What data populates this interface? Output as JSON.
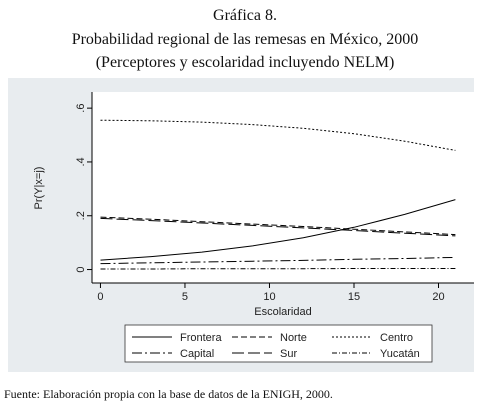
{
  "chart_data": {
    "type": "line",
    "title": "Gráfica 8.",
    "subtitle": "Probabilidad regional de las remesas en México, 2000",
    "subtitle2": "(Perceptores y escolaridad incluyendo NELM)",
    "source": "Fuente: Elaboración propia con la base de datos de la ENIGH, 2000.",
    "x_label": "Escolaridad",
    "y_label": "Pr(Y|x=j)",
    "x": [
      0,
      3,
      6,
      9,
      12,
      15,
      18,
      21
    ],
    "xlim": [
      -0.5,
      22.1
    ],
    "xticks": [
      0,
      5,
      10,
      15,
      20
    ],
    "ylim": [
      -0.05,
      0.66
    ],
    "yticks": [
      0,
      {
        "value": 0.2,
        "label": ".2"
      },
      {
        "value": 0.4,
        "label": ".4"
      },
      {
        "value": 0.6,
        "label": ".6"
      }
    ],
    "series": [
      {
        "name": "Frontera",
        "color": "#000000",
        "dash": "",
        "values": [
          0.035,
          0.048,
          0.065,
          0.088,
          0.118,
          0.157,
          0.205,
          0.26
        ]
      },
      {
        "name": "Norte",
        "color": "#000000",
        "dash": "6 3",
        "values": [
          0.195,
          0.187,
          0.178,
          0.169,
          0.16,
          0.15,
          0.14,
          0.13
        ]
      },
      {
        "name": "Centro",
        "color": "#000000",
        "dash": "2 2",
        "values": [
          0.555,
          0.553,
          0.548,
          0.539,
          0.525,
          0.505,
          0.477,
          0.443
        ]
      },
      {
        "name": "Capital",
        "color": "#000000",
        "dash": "10 3 2 3",
        "values": [
          0.022,
          0.025,
          0.028,
          0.031,
          0.034,
          0.038,
          0.041,
          0.045
        ]
      },
      {
        "name": "Sur",
        "color": "#000000",
        "dash": "12 4",
        "values": [
          0.19,
          0.182,
          0.173,
          0.164,
          0.155,
          0.145,
          0.135,
          0.125
        ]
      },
      {
        "name": "Yucatán",
        "color": "#000000",
        "dash": "5 2 1 2",
        "values": [
          0.002,
          0.002,
          0.003,
          0.003,
          0.003,
          0.004,
          0.004,
          0.004
        ]
      }
    ]
  }
}
